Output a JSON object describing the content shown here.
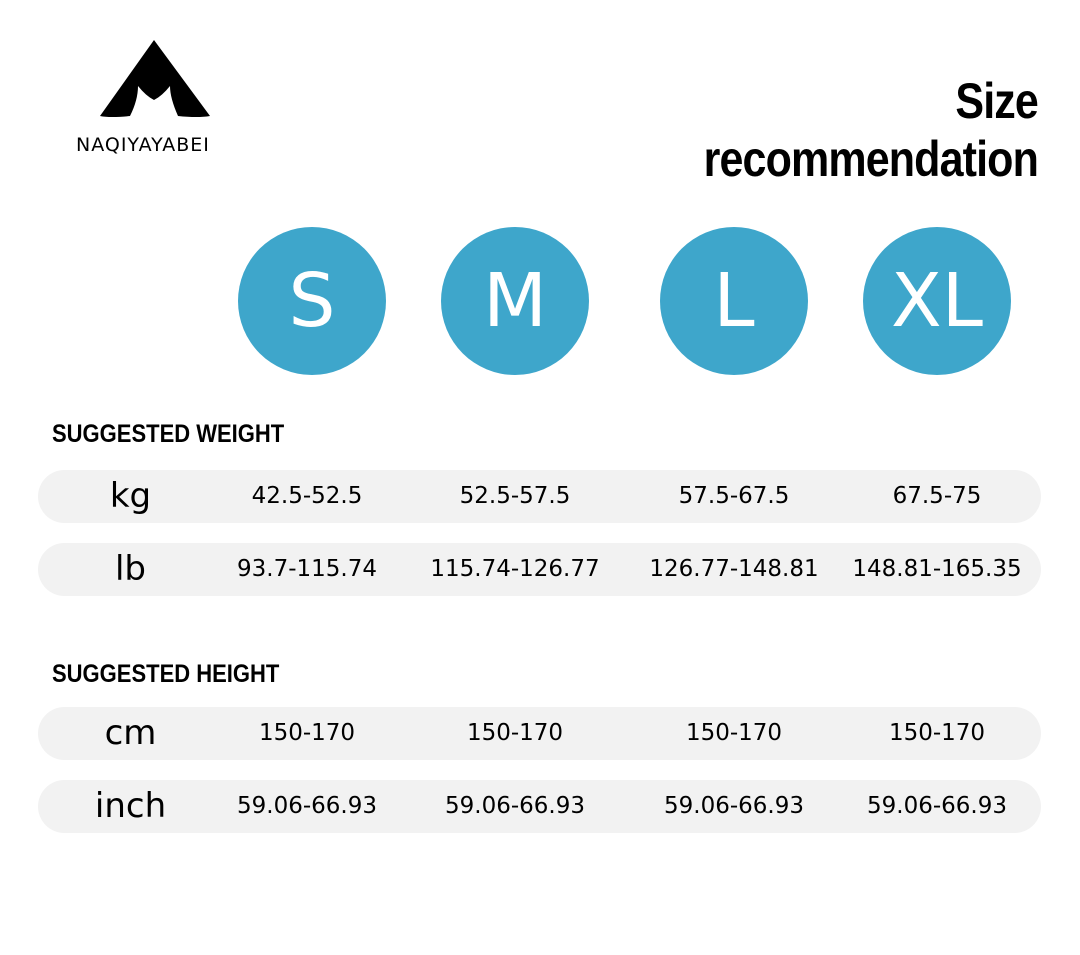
{
  "brand": "NAQIYAYABEI",
  "title": "Size recommendation",
  "sizes": [
    "S",
    "M",
    "L",
    "XL"
  ],
  "sections": [
    {
      "heading": "SUGGESTED WEIGHT",
      "rows": [
        {
          "unit": "kg",
          "cells": [
            "42.5-52.5",
            "52.5-57.5",
            "57.5-67.5",
            "67.5-75"
          ]
        },
        {
          "unit": "lb",
          "cells": [
            "93.7-115.74",
            "115.74-126.77",
            "126.77-148.81",
            "148.81-165.35"
          ]
        }
      ]
    },
    {
      "heading": "SUGGESTED HEIGHT",
      "rows": [
        {
          "unit": "cm",
          "cells": [
            "150-170",
            "150-170",
            "150-170",
            "150-170"
          ]
        },
        {
          "unit": "inch",
          "cells": [
            "59.06-66.93",
            "59.06-66.93",
            "59.06-66.93",
            "59.06-66.93"
          ]
        }
      ]
    }
  ]
}
